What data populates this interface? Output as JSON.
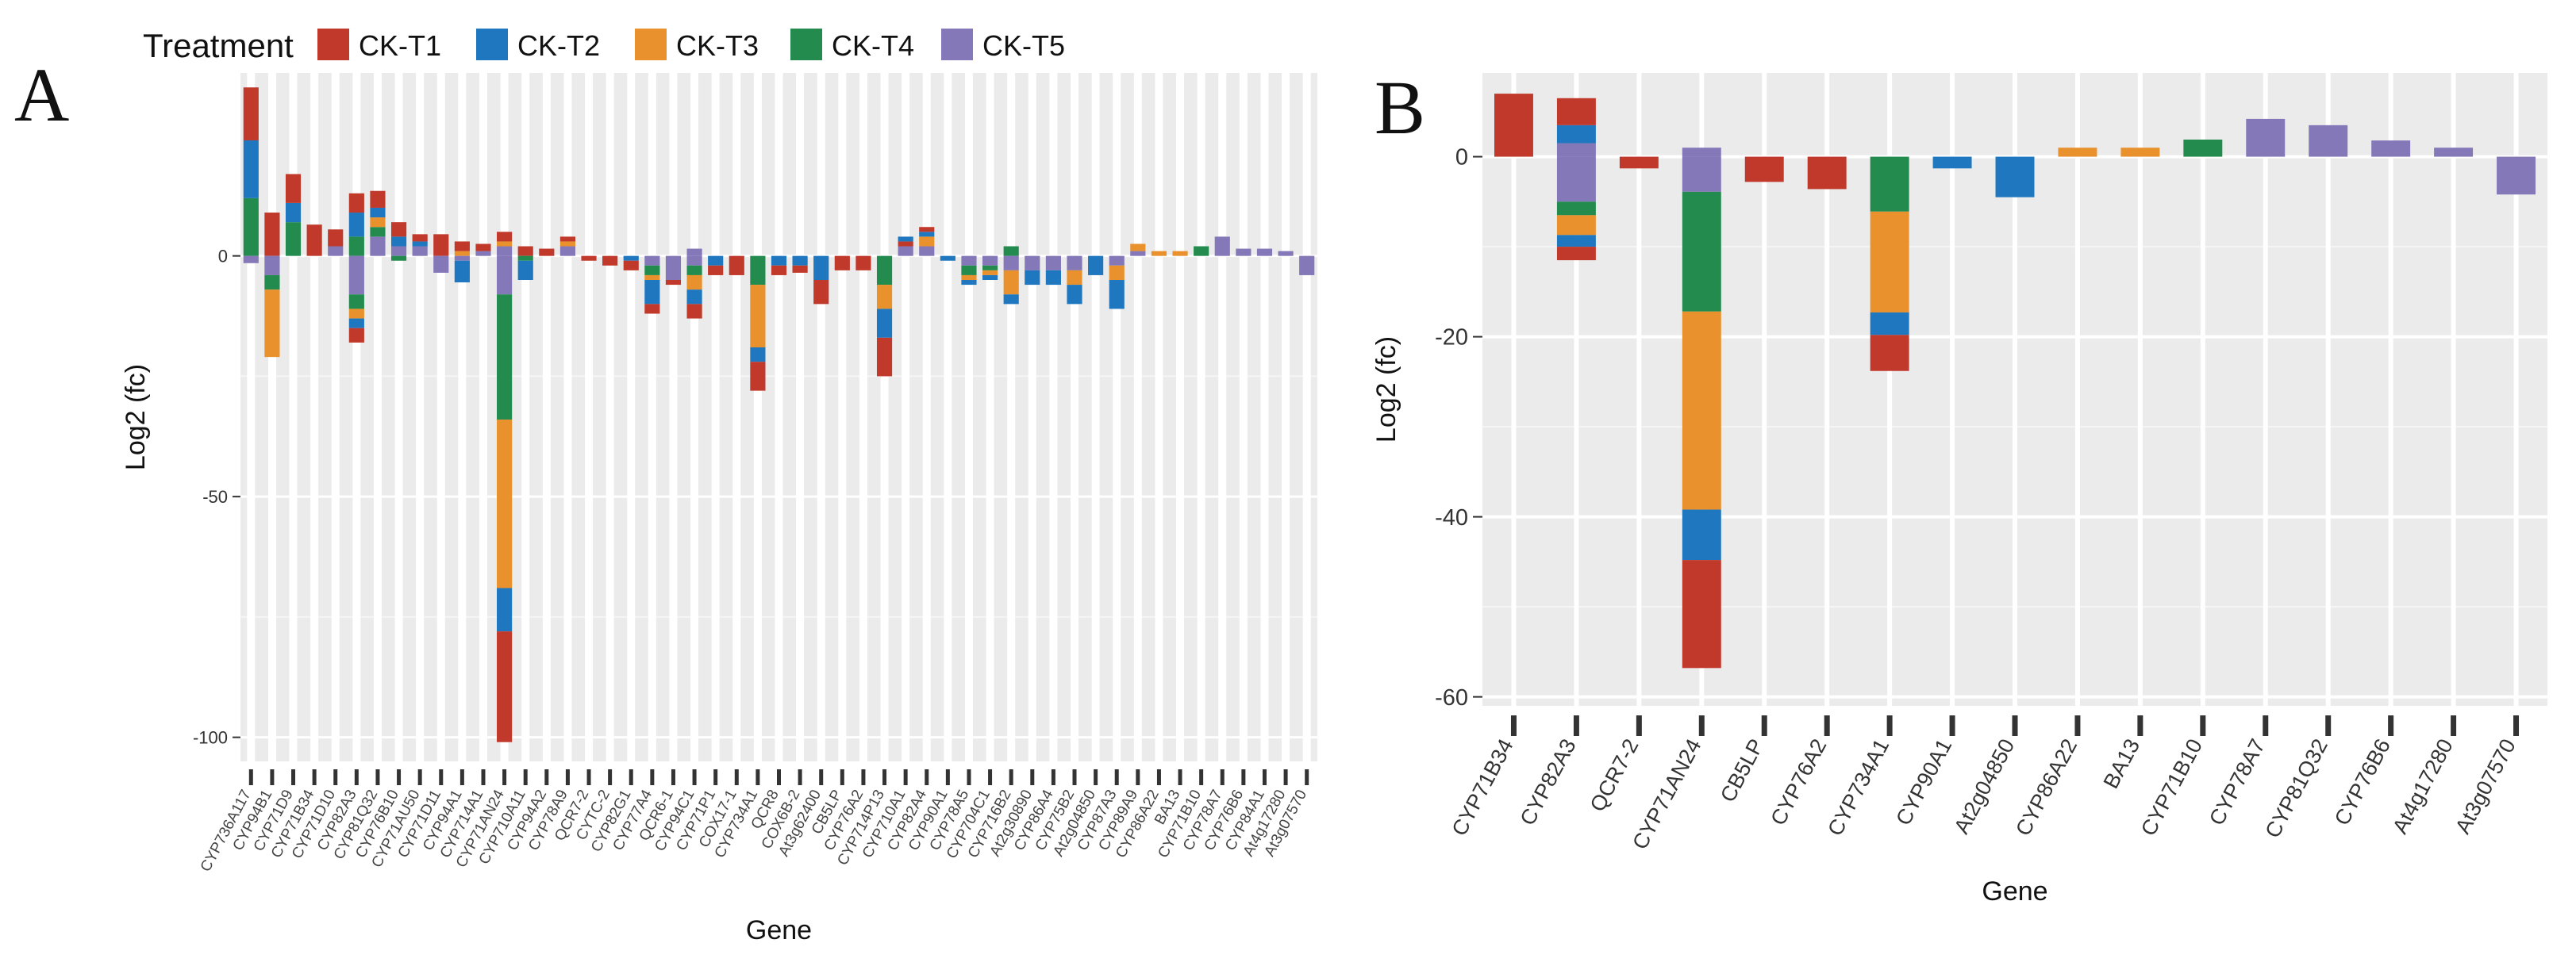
{
  "legend": {
    "title": "Treatment",
    "items": [
      {
        "label": "CK-T1",
        "color": "#C0392B"
      },
      {
        "label": "CK-T2",
        "color": "#1F77BF"
      },
      {
        "label": "CK-T3",
        "color": "#E8912D"
      },
      {
        "label": "CK-T4",
        "color": "#238B4E"
      },
      {
        "label": "CK-T5",
        "color": "#8478B8"
      }
    ]
  },
  "chart_data": [
    {
      "panel": "A",
      "type": "bar",
      "stacked": true,
      "xlabel": "Gene",
      "ylabel": "Log2 (fc)",
      "ylim": [
        -105,
        38
      ],
      "yticks": [
        0,
        -50,
        -100
      ],
      "series_order": [
        "CK-T1",
        "CK-T2",
        "CK-T3",
        "CK-T4",
        "CK-T5"
      ],
      "categories": [
        "CYP736A117",
        "CYP94B1",
        "CYP71D9",
        "CYP71B34",
        "CYP71D10",
        "CYP82A3",
        "CYP81Q32",
        "CYP76B10",
        "CYP71AU50",
        "CYP71D11",
        "CYP94A1",
        "CYP714A1",
        "CYP71AN24",
        "CYP710A11",
        "CYP94A2",
        "CYP78A9",
        "QCR7-2",
        "CYTC-2",
        "CYP82G1",
        "CYP77A4",
        "QCR6-1",
        "CYP94C1",
        "CYP71P1",
        "COX17-1",
        "CYP734A1",
        "QCR8",
        "COX6B-2",
        "At3g62400",
        "CB5LP",
        "CYP76A2",
        "CYP714P13",
        "CYP710A1",
        "CYP82A4",
        "CYP90A1",
        "CYP78A5",
        "CYP704C1",
        "CYP716B2",
        "At2g30890",
        "CYP86A4",
        "CYP75B2",
        "At2g04850",
        "CYP87A3",
        "CYP89A9",
        "CYP86A22",
        "BA13",
        "CYP71B10",
        "CYP78A7",
        "CYP76B6",
        "CYP84A1",
        "At4g17280",
        "At3g07570"
      ],
      "segments": [
        [
          [
            [
              "CK-T4",
              12
            ],
            [
              "CK-T2",
              12
            ],
            [
              "CK-T1",
              11
            ]
          ],
          [
            [
              "CK-T5",
              1.5
            ]
          ]
        ],
        [
          [
            [
              "CK-T1",
              9
            ]
          ],
          [
            [
              "CK-T5",
              4
            ],
            [
              "CK-T4",
              3
            ],
            [
              "CK-T3",
              14
            ]
          ]
        ],
        [
          [
            [
              "CK-T4",
              7
            ],
            [
              "CK-T2",
              4
            ],
            [
              "CK-T1",
              6
            ]
          ],
          []
        ],
        [
          [
            [
              "CK-T1",
              6.5
            ]
          ],
          []
        ],
        [
          [
            [
              "CK-T5",
              2
            ],
            [
              "CK-T1",
              3.5
            ]
          ],
          []
        ],
        [
          [
            [
              "CK-T4",
              4
            ],
            [
              "CK-T2",
              5
            ],
            [
              "CK-T1",
              4
            ]
          ],
          [
            [
              "CK-T5",
              8
            ],
            [
              "CK-T4",
              3
            ],
            [
              "CK-T3",
              2
            ],
            [
              "CK-T2",
              2
            ],
            [
              "CK-T1",
              3
            ]
          ]
        ],
        [
          [
            [
              "CK-T5",
              4
            ],
            [
              "CK-T4",
              2
            ],
            [
              "CK-T3",
              2
            ],
            [
              "CK-T2",
              2
            ],
            [
              "CK-T1",
              3.5
            ]
          ],
          []
        ],
        [
          [
            [
              "CK-T5",
              2
            ],
            [
              "CK-T2",
              2
            ],
            [
              "CK-T1",
              3
            ]
          ],
          [
            [
              "CK-T4",
              1
            ]
          ]
        ],
        [
          [
            [
              "CK-T5",
              2
            ],
            [
              "CK-T2",
              1
            ],
            [
              "CK-T1",
              1.5
            ]
          ],
          []
        ],
        [
          [
            [
              "CK-T1",
              4.5
            ]
          ],
          [
            [
              "CK-T5",
              3.5
            ]
          ]
        ],
        [
          [
            [
              "CK-T3",
              1
            ],
            [
              "CK-T1",
              2
            ]
          ],
          [
            [
              "CK-T5",
              1
            ],
            [
              "CK-T2",
              4.5
            ]
          ]
        ],
        [
          [
            [
              "CK-T5",
              1
            ],
            [
              "CK-T1",
              1.5
            ]
          ],
          []
        ],
        [
          [
            [
              "CK-T5",
              2
            ],
            [
              "CK-T3",
              1
            ],
            [
              "CK-T1",
              2
            ]
          ],
          [
            [
              "CK-T5",
              8
            ],
            [
              "CK-T4",
              26
            ],
            [
              "CK-T3",
              35
            ],
            [
              "CK-T2",
              9
            ],
            [
              "CK-T1",
              23
            ]
          ]
        ],
        [
          [
            [
              "CK-T1",
              2
            ]
          ],
          [
            [
              "CK-T4",
              1
            ],
            [
              "CK-T2",
              4
            ]
          ]
        ],
        [
          [
            [
              "CK-T1",
              1.5
            ]
          ],
          []
        ],
        [
          [
            [
              "CK-T5",
              2
            ],
            [
              "CK-T3",
              1
            ],
            [
              "CK-T1",
              1
            ]
          ],
          []
        ],
        [
          [],
          [
            [
              "CK-T1",
              1
            ]
          ]
        ],
        [
          [],
          [
            [
              "CK-T1",
              2
            ]
          ]
        ],
        [
          [],
          [
            [
              "CK-T2",
              1
            ],
            [
              "CK-T1",
              2
            ]
          ]
        ],
        [
          [],
          [
            [
              "CK-T5",
              2
            ],
            [
              "CK-T4",
              2
            ],
            [
              "CK-T3",
              1
            ],
            [
              "CK-T2",
              5
            ],
            [
              "CK-T1",
              2
            ]
          ]
        ],
        [
          [],
          [
            [
              "CK-T5",
              5
            ],
            [
              "CK-T1",
              1
            ]
          ]
        ],
        [
          [
            [
              "CK-T5",
              1.5
            ]
          ],
          [
            [
              "CK-T5",
              2
            ],
            [
              "CK-T4",
              2
            ],
            [
              "CK-T3",
              3
            ],
            [
              "CK-T2",
              3
            ],
            [
              "CK-T1",
              3
            ]
          ]
        ],
        [
          [],
          [
            [
              "CK-T2",
              2
            ],
            [
              "CK-T1",
              2
            ]
          ]
        ],
        [
          [],
          [
            [
              "CK-T1",
              4
            ]
          ]
        ],
        [
          [],
          [
            [
              "CK-T4",
              6
            ],
            [
              "CK-T3",
              13
            ],
            [
              "CK-T2",
              3
            ],
            [
              "CK-T1",
              6
            ]
          ]
        ],
        [
          [],
          [
            [
              "CK-T2",
              2
            ],
            [
              "CK-T1",
              2
            ]
          ]
        ],
        [
          [],
          [
            [
              "CK-T2",
              2
            ],
            [
              "CK-T1",
              1.5
            ]
          ]
        ],
        [
          [],
          [
            [
              "CK-T2",
              5
            ],
            [
              "CK-T1",
              5
            ]
          ]
        ],
        [
          [],
          [
            [
              "CK-T1",
              3
            ]
          ]
        ],
        [
          [],
          [
            [
              "CK-T1",
              3
            ]
          ]
        ],
        [
          [],
          [
            [
              "CK-T4",
              6
            ],
            [
              "CK-T3",
              5
            ],
            [
              "CK-T2",
              6
            ],
            [
              "CK-T1",
              8
            ]
          ]
        ],
        [
          [
            [
              "CK-T5",
              2
            ],
            [
              "CK-T1",
              1
            ],
            [
              "CK-T2",
              1
            ]
          ],
          []
        ],
        [
          [
            [
              "CK-T5",
              2
            ],
            [
              "CK-T3",
              2
            ],
            [
              "CK-T2",
              1
            ],
            [
              "CK-T1",
              1
            ]
          ],
          []
        ],
        [
          [],
          [
            [
              "CK-T2",
              1
            ]
          ]
        ],
        [
          [],
          [
            [
              "CK-T5",
              2
            ],
            [
              "CK-T4",
              2
            ],
            [
              "CK-T3",
              1
            ],
            [
              "CK-T2",
              1
            ]
          ]
        ],
        [
          [],
          [
            [
              "CK-T5",
              2
            ],
            [
              "CK-T4",
              1
            ],
            [
              "CK-T3",
              1
            ],
            [
              "CK-T2",
              1
            ]
          ]
        ],
        [
          [
            [
              "CK-T4",
              2
            ]
          ],
          [
            [
              "CK-T5",
              3
            ],
            [
              "CK-T3",
              5
            ],
            [
              "CK-T2",
              2
            ]
          ]
        ],
        [
          [],
          [
            [
              "CK-T5",
              3
            ],
            [
              "CK-T2",
              3
            ]
          ]
        ],
        [
          [],
          [
            [
              "CK-T5",
              3
            ],
            [
              "CK-T2",
              3
            ]
          ]
        ],
        [
          [],
          [
            [
              "CK-T5",
              3
            ],
            [
              "CK-T3",
              3
            ],
            [
              "CK-T2",
              4
            ]
          ]
        ],
        [
          [],
          [
            [
              "CK-T2",
              4
            ]
          ]
        ],
        [
          [],
          [
            [
              "CK-T5",
              2
            ],
            [
              "CK-T3",
              3
            ],
            [
              "CK-T2",
              6
            ]
          ]
        ],
        [
          [
            [
              "CK-T5",
              1
            ],
            [
              "CK-T3",
              1.5
            ]
          ],
          []
        ],
        [
          [
            [
              "CK-T3",
              1
            ]
          ],
          []
        ],
        [
          [
            [
              "CK-T3",
              1
            ]
          ],
          []
        ],
        [
          [
            [
              "CK-T4",
              2
            ]
          ],
          []
        ],
        [
          [
            [
              "CK-T5",
              4
            ]
          ],
          []
        ],
        [
          [
            [
              "CK-T5",
              1.5
            ]
          ],
          []
        ],
        [
          [
            [
              "CK-T5",
              1.5
            ]
          ],
          []
        ],
        [
          [
            [
              "CK-T5",
              1
            ]
          ],
          []
        ],
        [
          [],
          [
            [
              "CK-T5",
              4
            ]
          ]
        ]
      ]
    },
    {
      "panel": "B",
      "type": "bar",
      "stacked": true,
      "xlabel": "Gene",
      "ylabel": "Log2 (fc)",
      "ylim": [
        -61,
        9.3
      ],
      "yticks": [
        0,
        -20,
        -40,
        -60
      ],
      "series_order": [
        "CK-T1",
        "CK-T2",
        "CK-T3",
        "CK-T4",
        "CK-T5"
      ],
      "categories": [
        "CYP71B34",
        "CYP82A3",
        "QCR7-2",
        "CYP71AN24",
        "CB5LP",
        "CYP76A2",
        "CYP734A1",
        "CYP90A1",
        "At2g04850",
        "CYP86A22",
        "BA13",
        "CYP71B10",
        "CYP78A7",
        "CYP81Q32",
        "CYP76B6",
        "At4g17280",
        "At3g07570"
      ],
      "segments": [
        [
          [
            [
              "CK-T1",
              7
            ]
          ],
          []
        ],
        [
          [
            [
              "CK-T5",
              1.5
            ],
            [
              "CK-T2",
              2
            ],
            [
              "CK-T1",
              3
            ]
          ],
          [
            [
              "CK-T5",
              5
            ],
            [
              "CK-T4",
              1.5
            ],
            [
              "CK-T3",
              2.2
            ],
            [
              "CK-T2",
              1.3
            ],
            [
              "CK-T1",
              1.5
            ]
          ]
        ],
        [
          [],
          [
            [
              "CK-T1",
              1.3
            ]
          ]
        ],
        [
          [
            [
              "CK-T5",
              1
            ]
          ],
          [
            [
              "CK-T5",
              3.9
            ],
            [
              "CK-T4",
              13.3
            ],
            [
              "CK-T3",
              22
            ],
            [
              "CK-T2",
              5.6
            ],
            [
              "CK-T1",
              12
            ]
          ]
        ],
        [
          [],
          [
            [
              "CK-T1",
              2.8
            ]
          ]
        ],
        [
          [],
          [
            [
              "CK-T1",
              3.6
            ]
          ]
        ],
        [
          [],
          [
            [
              "CK-T4",
              6.1
            ],
            [
              "CK-T3",
              11.2
            ],
            [
              "CK-T2",
              2.5
            ],
            [
              "CK-T1",
              4
            ]
          ]
        ],
        [
          [],
          [
            [
              "CK-T2",
              1.3
            ]
          ]
        ],
        [
          [],
          [
            [
              "CK-T2",
              4.5
            ]
          ]
        ],
        [
          [
            [
              "CK-T3",
              1
            ]
          ],
          []
        ],
        [
          [
            [
              "CK-T3",
              1
            ]
          ],
          []
        ],
        [
          [
            [
              "CK-T4",
              1.9
            ]
          ],
          []
        ],
        [
          [
            [
              "CK-T5",
              4.2
            ]
          ],
          []
        ],
        [
          [
            [
              "CK-T5",
              3.5
            ]
          ],
          []
        ],
        [
          [
            [
              "CK-T5",
              1.8
            ]
          ],
          []
        ],
        [
          [
            [
              "CK-T5",
              1
            ]
          ],
          []
        ],
        [
          [],
          [
            [
              "CK-T5",
              4.2
            ]
          ]
        ]
      ]
    }
  ]
}
